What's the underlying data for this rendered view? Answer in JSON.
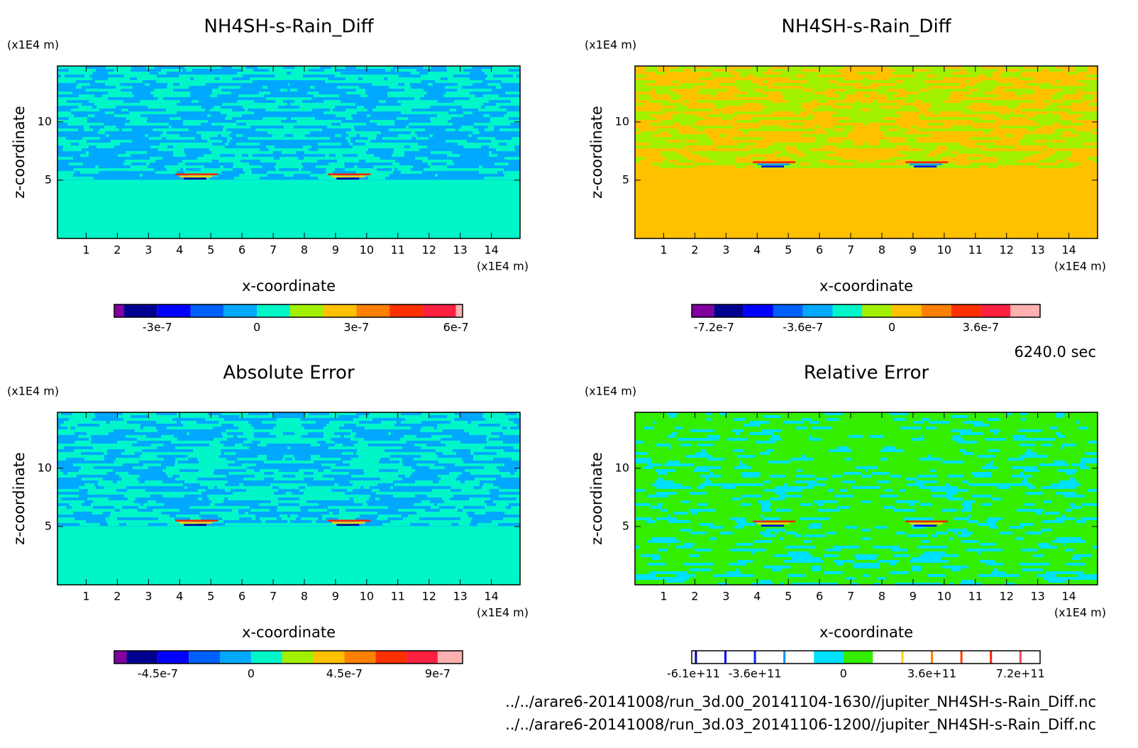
{
  "chart_data": [
    {
      "type": "contour",
      "title": "NH4SH-s-Rain_Diff",
      "x_label": "x-coordinate",
      "y_label": "z-coordinate",
      "x_unit": "(x1E4 m)",
      "y_unit": "(x1E4 m)",
      "xlim": [
        0.08,
        14.92
      ],
      "ylim": [
        0,
        14.8
      ],
      "xticks": [
        1,
        2,
        3,
        4,
        5,
        6,
        7,
        8,
        9,
        10,
        11,
        12,
        13,
        14
      ],
      "yticks": [
        5,
        10
      ],
      "colorbar": {
        "clim": [
          -4.3e-07,
          6.2e-07
        ],
        "levels": [
          -4e-07,
          -3e-07,
          -2e-07,
          -1e-07,
          0,
          1e-07,
          2e-07,
          3e-07,
          4e-07,
          5e-07,
          6e-07
        ],
        "colors": [
          "#8000a0",
          "#000090",
          "#0000ff",
          "#0060ff",
          "#00a8ff",
          "#00f5c8",
          "#a0f000",
          "#ffc000",
          "#ff8000",
          "#ff3000",
          "#ff2040",
          "#ffb0b0"
        ],
        "ticks": [
          -3e-07,
          0,
          3e-07,
          6e-07
        ]
      }
    },
    {
      "type": "contour",
      "title": "NH4SH-s-Rain_Diff",
      "x_label": "x-coordinate",
      "y_label": "z-coordinate",
      "x_unit": "(x1E4 m)",
      "y_unit": "(x1E4 m)",
      "xlim": [
        0.08,
        14.92
      ],
      "ylim": [
        0,
        14.8
      ],
      "xticks": [
        1,
        2,
        3,
        4,
        5,
        6,
        7,
        8,
        9,
        10,
        11,
        12,
        13,
        14
      ],
      "yticks": [
        5,
        10
      ],
      "colorbar": {
        "clim": [
          -8.1e-07,
          6e-07
        ],
        "levels": [
          -7.2e-07,
          -6e-07,
          -4.8e-07,
          -3.6e-07,
          -2.4e-07,
          -1.2e-07,
          0,
          1.2e-07,
          2.4e-07,
          3.6e-07,
          4.8e-07
        ],
        "colors": [
          "#8000a0",
          "#000090",
          "#0000ff",
          "#0060ff",
          "#00a8ff",
          "#00f5c8",
          "#a0f000",
          "#ffc000",
          "#ff8000",
          "#ff3000",
          "#ff2040",
          "#ffb0b0"
        ],
        "ticks": [
          -7.2e-07,
          -3.6e-07,
          0,
          3.6e-07
        ]
      }
    },
    {
      "type": "contour",
      "title": "Absolute Error",
      "x_label": "x-coordinate",
      "y_label": "z-coordinate",
      "x_unit": "(x1E4 m)",
      "y_unit": "(x1E4 m)",
      "xlim": [
        0.08,
        14.92
      ],
      "ylim": [
        0,
        14.8
      ],
      "xticks": [
        1,
        2,
        3,
        4,
        5,
        6,
        7,
        8,
        9,
        10,
        11,
        12,
        13,
        14
      ],
      "yticks": [
        5,
        10
      ],
      "colorbar": {
        "clim": [
          -6.6e-07,
          1.02e-06
        ],
        "levels": [
          -6e-07,
          -4.5e-07,
          -3e-07,
          -1.5e-07,
          0,
          1.5e-07,
          3e-07,
          4.5e-07,
          6e-07,
          7.5e-07,
          9e-07
        ],
        "colors": [
          "#8000a0",
          "#000090",
          "#0000ff",
          "#0060ff",
          "#00a8ff",
          "#00f5c8",
          "#a0f000",
          "#ffc000",
          "#ff8000",
          "#ff3000",
          "#ff2040",
          "#ffb0b0"
        ],
        "ticks": [
          -4.5e-07,
          0,
          4.5e-07,
          9e-07
        ]
      }
    },
    {
      "type": "contour",
      "title": "Relative Error",
      "x_label": "x-coordinate",
      "y_label": "z-coordinate",
      "x_unit": "(x1E4 m)",
      "y_unit": "(x1E4 m)",
      "xlim": [
        0.08,
        14.92
      ],
      "ylim": [
        0,
        14.8
      ],
      "xticks": [
        1,
        2,
        3,
        4,
        5,
        6,
        7,
        8,
        9,
        10,
        11,
        12,
        13,
        14
      ],
      "yticks": [
        5,
        10
      ],
      "colorbar": {
        "clim": [
          -617000000000.0,
          800000000000.0
        ],
        "levels": [
          -120000000000.0,
          0,
          120000000000.0
        ],
        "colors": [
          "#ffffff",
          "#00e0ff",
          "#33ee00",
          "#ffffff"
        ],
        "lines": [
          {
            "value": -600000000000.0,
            "color": "#0000a0"
          },
          {
            "value": -480000000000.0,
            "color": "#0000ff"
          },
          {
            "value": -360000000000.0,
            "color": "#0020ff"
          },
          {
            "value": -240000000000.0,
            "color": "#0090ff"
          },
          {
            "value": 240000000000.0,
            "color": "#ffd000"
          },
          {
            "value": 360000000000.0,
            "color": "#ff8000"
          },
          {
            "value": 480000000000.0,
            "color": "#ff4000"
          },
          {
            "value": 600000000000.0,
            "color": "#ff2000"
          },
          {
            "value": 720000000000.0,
            "color": "#ff4060"
          }
        ],
        "ticks": [
          {
            "value": -610000000000.0,
            "label": "-6.1e+11"
          },
          {
            "value": -360000000000.0,
            "label": "-3.6e+11"
          },
          0,
          {
            "value": 360000000000.0,
            "label": "3.6e+11"
          },
          {
            "value": 720000000000.0,
            "label": "7.2e+11"
          }
        ]
      }
    }
  ],
  "annotations": {
    "time": "6240.0 sec",
    "files": [
      "../../arare6-20141008/run_3d.00_20141104-1630//jupiter_NH4SH-s-Rain_Diff.nc",
      "../../arare6-20141008/run_3d.03_20141106-1200//jupiter_NH4SH-s-Rain_Diff.nc"
    ]
  }
}
